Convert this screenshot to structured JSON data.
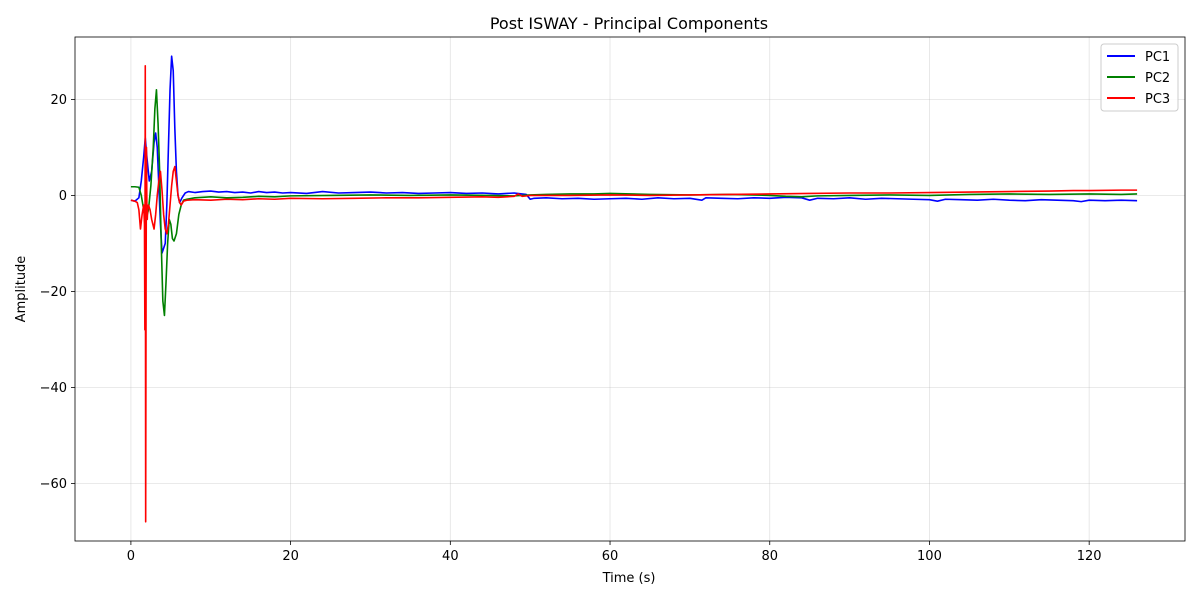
{
  "chart_data": {
    "type": "line",
    "title": "Post ISWAY - Principal Components",
    "xlabel": "Time (s)",
    "ylabel": "Amplitude",
    "xlim": [
      -7,
      132
    ],
    "ylim": [
      -72,
      33
    ],
    "xticks": [
      0,
      20,
      40,
      60,
      80,
      100,
      120
    ],
    "xtick_labels": [
      "0",
      "20",
      "40",
      "60",
      "80",
      "100",
      "120"
    ],
    "yticks": [
      20,
      0,
      -20,
      -40,
      -60
    ],
    "ytick_labels": [
      "20",
      "0",
      "−20",
      "−40",
      "−60"
    ],
    "grid": true,
    "legend_position": "top-right",
    "series": [
      {
        "name": "PC1",
        "color": "#0000ff",
        "x": [
          0,
          0.5,
          1.0,
          1.3,
          1.6,
          1.8,
          2.0,
          2.3,
          2.6,
          2.9,
          3.1,
          3.3,
          3.5,
          3.7,
          3.9,
          4.1,
          4.3,
          4.5,
          4.7,
          4.9,
          5.1,
          5.3,
          5.5,
          5.7,
          5.9,
          6.1,
          6.4,
          6.8,
          7.2,
          8,
          9,
          10,
          11,
          12,
          13,
          14,
          15,
          16,
          17,
          18,
          19,
          20,
          22,
          24,
          26,
          28,
          30,
          32,
          34,
          36,
          38,
          40,
          42,
          44,
          46,
          48,
          49.5,
          50,
          50.5,
          52,
          54,
          56,
          58,
          60,
          62,
          64,
          66,
          68,
          70,
          71.5,
          72,
          74,
          76,
          78,
          80,
          82,
          84,
          85,
          86,
          88,
          90,
          92,
          94,
          96,
          98,
          100,
          101,
          102,
          104,
          106,
          108,
          110,
          112,
          114,
          116,
          118,
          119,
          120,
          122,
          124,
          126
        ],
        "y": [
          -1,
          -1.2,
          -0.5,
          3,
          8,
          12,
          8,
          3,
          5,
          11,
          13,
          10,
          2,
          -6,
          -12,
          -11,
          -10,
          -2,
          10,
          22,
          29,
          26,
          14,
          5,
          0,
          -1.5,
          -0.5,
          0.5,
          0.8,
          0.6,
          0.8,
          0.9,
          0.7,
          0.8,
          0.6,
          0.7,
          0.5,
          0.8,
          0.6,
          0.7,
          0.5,
          0.6,
          0.4,
          0.8,
          0.5,
          0.6,
          0.7,
          0.5,
          0.6,
          0.4,
          0.5,
          0.6,
          0.4,
          0.5,
          0.3,
          0.5,
          0.2,
          -0.8,
          -0.6,
          -0.5,
          -0.7,
          -0.6,
          -0.8,
          -0.7,
          -0.6,
          -0.8,
          -0.5,
          -0.7,
          -0.6,
          -1.0,
          -0.5,
          -0.6,
          -0.7,
          -0.5,
          -0.6,
          -0.4,
          -0.5,
          -1.0,
          -0.6,
          -0.7,
          -0.5,
          -0.8,
          -0.6,
          -0.7,
          -0.8,
          -0.9,
          -1.2,
          -0.8,
          -0.9,
          -1.0,
          -0.8,
          -1.0,
          -1.1,
          -0.9,
          -1.0,
          -1.1,
          -1.3,
          -1.0,
          -1.1,
          -1.0,
          -1.1
        ]
      },
      {
        "name": "PC2",
        "color": "#008000",
        "x": [
          0,
          0.5,
          1.0,
          1.3,
          1.6,
          1.9,
          2.2,
          2.5,
          2.8,
          3.0,
          3.2,
          3.4,
          3.6,
          3.8,
          4.0,
          4.2,
          4.4,
          4.6,
          4.8,
          5.0,
          5.2,
          5.4,
          5.7,
          6.0,
          6.3,
          6.6,
          7,
          8,
          10,
          12,
          14,
          16,
          18,
          20,
          25,
          30,
          35,
          40,
          45,
          48,
          50,
          52,
          55,
          58,
          60,
          65,
          70,
          75,
          80,
          82,
          84,
          86,
          90,
          95,
          100,
          105,
          110,
          115,
          120,
          124,
          126
        ],
        "y": [
          1.8,
          1.8,
          1.7,
          0,
          -3,
          -5,
          -3,
          2,
          10,
          18,
          22,
          15,
          5,
          -10,
          -22,
          -25,
          -18,
          -10,
          -5,
          -6,
          -9,
          -9.5,
          -8,
          -4,
          -2,
          -1,
          -0.8,
          -0.5,
          -0.3,
          -0.5,
          -0.4,
          -0.2,
          -0.3,
          -0.1,
          0.0,
          0.1,
          0.0,
          0.1,
          0.0,
          -0.1,
          0.1,
          0.2,
          0.3,
          0.3,
          0.4,
          0.2,
          0.1,
          0.2,
          0.0,
          -0.2,
          -0.3,
          -0.1,
          0.0,
          0.1,
          0.0,
          0.2,
          0.3,
          0.2,
          0.3,
          0.2,
          0.3
        ]
      },
      {
        "name": "PC3",
        "color": "#ff0000",
        "x": [
          0,
          0.5,
          0.8,
          1.0,
          1.2,
          1.4,
          1.6,
          1.7,
          1.75,
          1.8,
          1.85,
          1.9,
          1.95,
          2.0,
          2.05,
          2.1,
          2.2,
          2.4,
          2.6,
          2.9,
          3.1,
          3.3,
          3.5,
          3.7,
          3.9,
          4.1,
          4.3,
          4.5,
          4.7,
          4.9,
          5.1,
          5.3,
          5.5,
          5.7,
          5.9,
          6.1,
          6.3,
          6.6,
          7,
          8,
          10,
          12,
          14,
          16,
          18,
          20,
          24,
          28,
          32,
          36,
          40,
          44,
          46,
          48,
          48.5,
          49,
          50,
          55,
          60,
          65,
          70,
          75,
          80,
          85,
          90,
          95,
          100,
          105,
          110,
          115,
          118,
          120,
          124,
          126
        ],
        "y": [
          -1.0,
          -1.2,
          -1.5,
          -3,
          -7,
          -4,
          -2,
          -6,
          -28,
          27,
          -68,
          -20,
          10,
          -2,
          -5,
          -3,
          -2,
          -3,
          -5,
          -7,
          -4,
          0,
          3,
          5,
          1,
          -4,
          -7,
          -8,
          -6,
          -2,
          2,
          5,
          6,
          3,
          0,
          -1.5,
          -2,
          -1.2,
          -1.0,
          -0.9,
          -1.0,
          -0.8,
          -0.9,
          -0.7,
          -0.8,
          -0.6,
          -0.7,
          -0.6,
          -0.5,
          -0.5,
          -0.4,
          -0.3,
          -0.4,
          -0.2,
          0.3,
          -0.2,
          0.0,
          0.0,
          0.1,
          0.0,
          0.1,
          0.2,
          0.3,
          0.4,
          0.5,
          0.5,
          0.6,
          0.7,
          0.8,
          0.9,
          1.0,
          1.0,
          1.1,
          1.1
        ]
      }
    ]
  }
}
